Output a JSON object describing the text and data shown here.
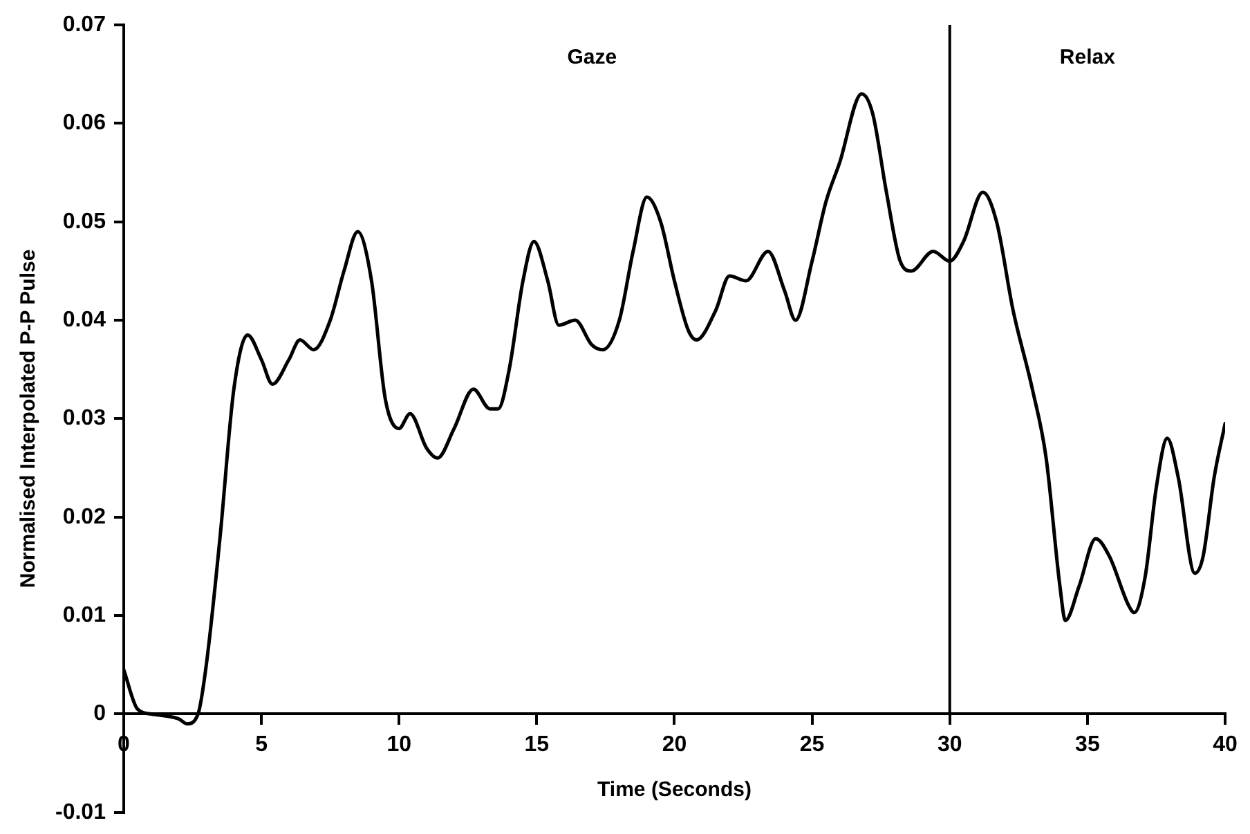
{
  "chart_data": {
    "type": "line",
    "xlabel": "Time (Seconds)",
    "ylabel": "Normalised Interpolated P-P Pulse",
    "xlim": [
      0,
      40
    ],
    "xticks": [
      0,
      5,
      10,
      15,
      20,
      25,
      30,
      35,
      40
    ],
    "ylim": [
      -0.01,
      0.07
    ],
    "yticks": [
      -0.01,
      0,
      0.01,
      0.02,
      0.03,
      0.04,
      0.05,
      0.06,
      0.07
    ],
    "grid": false,
    "legend": false,
    "marker": "none",
    "line_style": "solid",
    "ref_lines": [
      {
        "axis": "x",
        "value": 30,
        "color": "#000000"
      }
    ],
    "annotations": [
      "Gaze",
      "Relax"
    ],
    "series": [
      {
        "color": "#000000",
        "x": [
          0,
          0.5,
          1,
          2,
          2.3,
          2.7,
          3,
          3.5,
          4,
          4.5,
          5,
          5.4,
          6,
          6.4,
          6.9,
          7.5,
          8,
          8.5,
          9,
          9.5,
          10,
          10.4,
          11,
          11.4,
          12,
          12.7,
          13.3,
          13.6,
          14,
          14.5,
          14.9,
          15.4,
          15.8,
          16.4,
          17,
          17.4,
          18,
          18.5,
          19,
          19.5,
          20,
          20.5,
          20.8,
          21.5,
          22,
          22.6,
          23.4,
          24,
          24.4,
          25,
          25.5,
          26,
          26.8,
          27.2,
          27.7,
          28.2,
          28.6,
          29.4,
          30,
          30.5,
          31.2,
          31.7,
          32.3,
          33,
          33.5,
          34,
          34.2,
          34.7,
          35.3,
          35.8,
          36.5,
          36.7,
          37.1,
          37.5,
          37.9,
          38.3,
          38.9,
          39.2,
          39.6,
          40
        ],
        "values": [
          0.0045,
          0.0005,
          0,
          -0.0005,
          -0.001,
          0,
          0.005,
          0.018,
          0.033,
          0.0385,
          0.036,
          0.0335,
          0.036,
          0.038,
          0.037,
          0.04,
          0.045,
          0.049,
          0.044,
          0.032,
          0.029,
          0.0305,
          0.027,
          0.026,
          0.029,
          0.033,
          0.031,
          0.031,
          0.035,
          0.044,
          0.048,
          0.044,
          0.0395,
          0.04,
          0.0375,
          0.037,
          0.04,
          0.047,
          0.0525,
          0.05,
          0.044,
          0.039,
          0.038,
          0.041,
          0.0445,
          0.044,
          0.047,
          0.043,
          0.04,
          0.046,
          0.052,
          0.056,
          0.063,
          0.061,
          0.053,
          0.046,
          0.045,
          0.047,
          0.046,
          0.048,
          0.053,
          0.05,
          0.041,
          0.033,
          0.026,
          0.013,
          0.0095,
          0.013,
          0.0178,
          0.016,
          0.011,
          0.0103,
          0.014,
          0.023,
          0.028,
          0.024,
          0.0143,
          0.016,
          0.024,
          0.0295
        ]
      }
    ]
  }
}
